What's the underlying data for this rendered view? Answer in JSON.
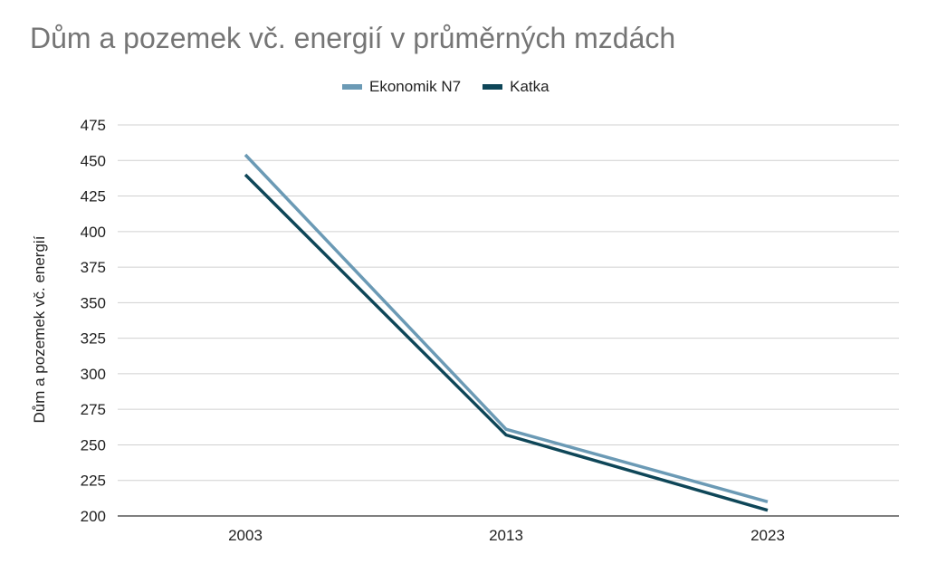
{
  "chart_data": {
    "type": "line",
    "title": "Dům a pozemek vč. energií v průměrných mzdách",
    "xlabel": "",
    "ylabel": "Dům a pozemek vč. energií",
    "categories": [
      "2003",
      "2013",
      "2023"
    ],
    "series": [
      {
        "name": "Ekonomik N7",
        "values": [
          454,
          261,
          210
        ],
        "color": "#6B9AB5"
      },
      {
        "name": "Katka",
        "values": [
          440,
          257,
          204
        ],
        "color": "#0E4658"
      }
    ],
    "ylim": [
      200,
      475
    ],
    "yticks": [
      "200",
      "225",
      "250",
      "275",
      "300",
      "325",
      "350",
      "375",
      "400",
      "425",
      "450",
      "475"
    ],
    "grid": true,
    "legend_position": "top"
  }
}
